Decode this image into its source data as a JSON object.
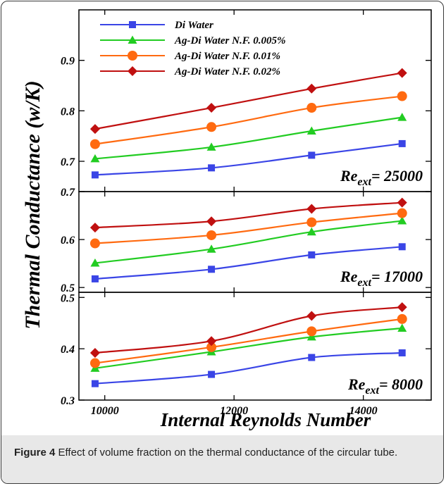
{
  "figure": {
    "caption_label": "Figure 4",
    "caption_text": "Effect of volume fraction on the thermal conductance of the circular tube."
  },
  "chart_data": {
    "type": "line",
    "xlabel": "Internal Reynolds Number",
    "ylabel": "Thermal Conductance (w/K)",
    "xlim": [
      9600,
      15050
    ],
    "xticks": [
      10000,
      12000,
      14000
    ],
    "x": [
      9850,
      11650,
      13200,
      14600
    ],
    "series_styles": [
      {
        "name": "Di Water",
        "color": "#3a45e6",
        "marker": "square"
      },
      {
        "name": "Ag-Di Water N.F. 0.005%",
        "color": "#22cc22",
        "marker": "triangle"
      },
      {
        "name": "Ag-Di Water N.F. 0.01%",
        "color": "#ff6a10",
        "marker": "circle"
      },
      {
        "name": "Ag-Di Water N.F. 0.02%",
        "color": "#c01010",
        "marker": "diamond"
      }
    ],
    "panels": [
      {
        "re_label": "25000",
        "ylim": [
          0.64,
          1.0
        ],
        "yticks": [
          "0.7",
          "0.8",
          "0.9"
        ],
        "series": [
          {
            "name": "Di Water",
            "values": [
              0.673,
              0.687,
              0.712,
              0.735
            ]
          },
          {
            "name": "Ag-Di Water N.F. 0.005%",
            "values": [
              0.705,
              0.728,
              0.76,
              0.787
            ]
          },
          {
            "name": "Ag-Di Water N.F. 0.01%",
            "values": [
              0.734,
              0.768,
              0.806,
              0.829
            ]
          },
          {
            "name": "Ag-Di Water N.F. 0.02%",
            "values": [
              0.764,
              0.806,
              0.844,
              0.875
            ]
          }
        ]
      },
      {
        "re_label": "17000",
        "ylim": [
          0.49,
          0.7
        ],
        "yticks": [
          "0.5",
          "0.6",
          "0.7"
        ],
        "series": [
          {
            "name": "Di Water",
            "values": [
              0.518,
              0.538,
              0.568,
              0.585
            ]
          },
          {
            "name": "Ag-Di Water N.F. 0.005%",
            "values": [
              0.551,
              0.58,
              0.616,
              0.639
            ]
          },
          {
            "name": "Ag-Di Water N.F. 0.01%",
            "values": [
              0.592,
              0.609,
              0.636,
              0.655
            ]
          },
          {
            "name": "Ag-Di Water N.F. 0.02%",
            "values": [
              0.625,
              0.638,
              0.664,
              0.677
            ]
          }
        ]
      },
      {
        "re_label": "8000",
        "ylim": [
          0.3,
          0.51
        ],
        "yticks": [
          "0.3",
          "0.4",
          "0.5"
        ],
        "series": [
          {
            "name": "Di Water",
            "values": [
              0.332,
              0.35,
              0.383,
              0.392
            ]
          },
          {
            "name": "Ag-Di Water N.F. 0.005%",
            "values": [
              0.362,
              0.394,
              0.423,
              0.44
            ]
          },
          {
            "name": "Ag-Di Water N.F. 0.01%",
            "values": [
              0.372,
              0.403,
              0.434,
              0.458
            ]
          },
          {
            "name": "Ag-Di Water N.F. 0.02%",
            "values": [
              0.392,
              0.415,
              0.464,
              0.481
            ]
          }
        ]
      }
    ],
    "re_prefix": "Re",
    "re_subscript": "ext",
    "legend_position": "top"
  }
}
